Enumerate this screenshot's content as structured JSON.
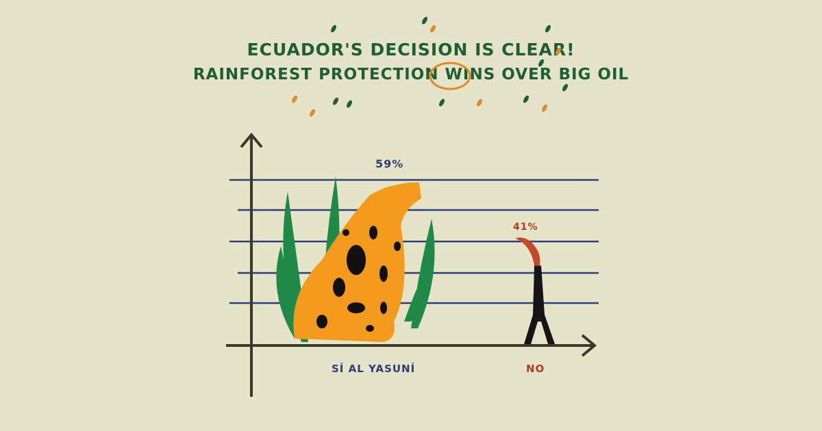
{
  "chart_data": {
    "type": "bar",
    "title": "ECUADOR'S DECISION IS CLEAR!",
    "subtitle": "RAINFOREST PROTECTION WINS OVER BIG OIL",
    "highlighted_word": "WINS",
    "categories": [
      "SÍ AL YASUNÍ",
      "NO"
    ],
    "values": [
      59,
      41
    ],
    "data_labels": [
      "59%",
      "41%"
    ],
    "unit": "%",
    "ylim": [
      0,
      100
    ],
    "grid": true,
    "bar_styles": [
      "jaguar-in-rainforest-illustration",
      "oil-derrick-with-flare-illustration"
    ],
    "colors": {
      "background": "#e5e4c8",
      "title": "#1e5e34",
      "highlight_circle": "#e08a2c",
      "gridlines": "#2a3f7a",
      "axes": "#3a3a2a",
      "yes_label": "#2a3f7a",
      "no_label": "#b03a24",
      "jaguar": "#f49a1c",
      "leaves": "#1f8a48"
    }
  }
}
